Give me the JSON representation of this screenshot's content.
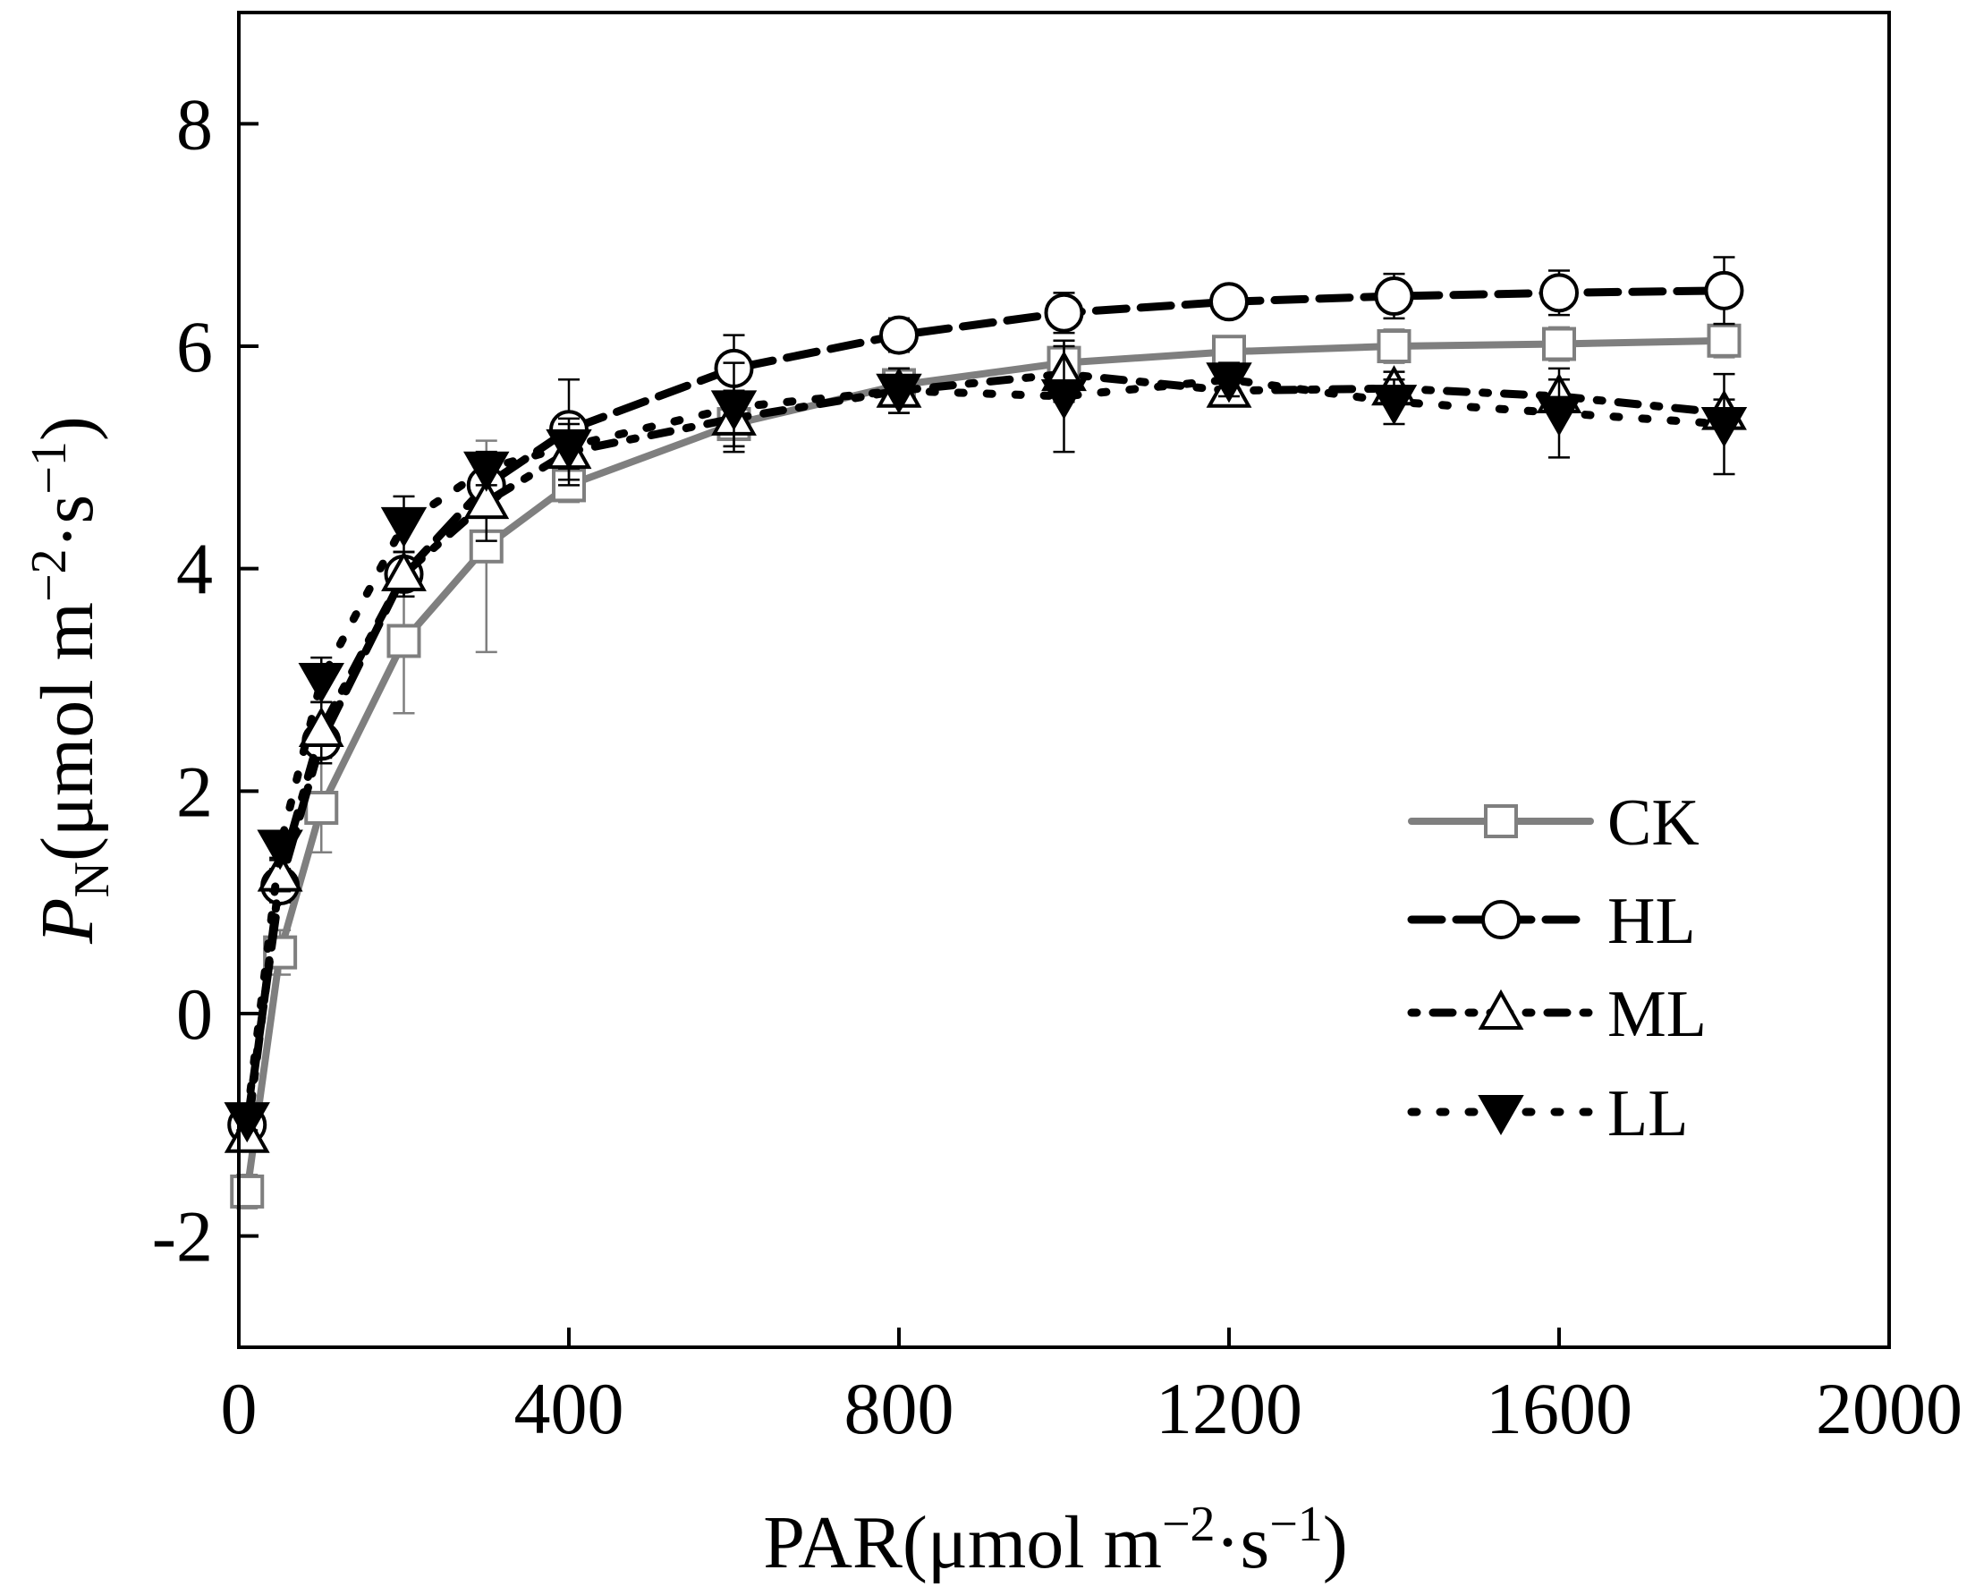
{
  "chart_data": {
    "type": "line",
    "xlabel": "PAR(μmol m⁻²·s⁻¹)",
    "ylabel": "PN(μmol m⁻²·s⁻¹)",
    "xlabel_parts": {
      "main": "PAR(μmol m",
      "sup1": "−2",
      "mid": "·s",
      "sup2": "−1",
      "end": ")"
    },
    "ylabel_parts": {
      "italic": "P",
      "sub": "N",
      "main": "(μmol m",
      "sup1": "−2",
      "mid": "·s",
      "sup2": "−1",
      "end": ")"
    },
    "xlim": [
      0,
      2000
    ],
    "ylim": [
      -3,
      9
    ],
    "xticks": [
      0,
      400,
      800,
      1200,
      1600,
      2000
    ],
    "xtick_labels": [
      "0",
      "400",
      "800",
      "1200",
      "1600",
      "2000"
    ],
    "yticks": [
      -2,
      0,
      2,
      4,
      6,
      8
    ],
    "ytick_labels": [
      "-2",
      "0",
      "2",
      "4",
      "6",
      "8"
    ],
    "legend_position": "right-center",
    "x": [
      10,
      50,
      100,
      200,
      300,
      400,
      600,
      800,
      1000,
      1200,
      1400,
      1600,
      1800
    ],
    "series": [
      {
        "name": "CK",
        "marker": "square-open",
        "line": "solid",
        "color": "#7f7f7f",
        "values": [
          -1.6,
          0.55,
          1.85,
          3.35,
          4.2,
          4.75,
          5.3,
          5.65,
          5.85,
          5.95,
          6.0,
          6.02,
          6.05
        ],
        "errors": [
          0.15,
          0.2,
          0.4,
          0.65,
          0.95,
          0.15,
          0.2,
          0.15,
          0.2,
          0.12,
          0.15,
          0.15,
          0.15
        ]
      },
      {
        "name": "HL",
        "marker": "circle-open",
        "line": "dashed",
        "color": "#000000",
        "values": [
          -1.0,
          1.15,
          2.45,
          3.95,
          4.75,
          5.25,
          5.8,
          6.1,
          6.3,
          6.4,
          6.45,
          6.48,
          6.5
        ],
        "errors": [
          0.12,
          0.15,
          0.2,
          0.2,
          0.2,
          0.45,
          0.3,
          0.15,
          0.18,
          0.1,
          0.2,
          0.2,
          0.3
        ]
      },
      {
        "name": "ML",
        "marker": "triangle-up-open",
        "line": "dot-dash",
        "color": "#000000",
        "values": [
          -1.1,
          1.25,
          2.55,
          3.95,
          4.6,
          5.05,
          5.35,
          5.6,
          5.75,
          5.6,
          5.62,
          5.55,
          5.4
        ],
        "errors": [
          0.12,
          0.15,
          0.25,
          0.2,
          0.35,
          0.3,
          0.25,
          0.2,
          0.25,
          0.12,
          0.15,
          0.15,
          0.12
        ]
      },
      {
        "name": "LL",
        "marker": "triangle-down-filled",
        "line": "dotted",
        "color": "#000000",
        "values": [
          -0.95,
          1.5,
          3.0,
          4.4,
          4.9,
          5.1,
          5.45,
          5.6,
          5.55,
          5.7,
          5.5,
          5.4,
          5.3
        ],
        "errors": [
          0.1,
          0.12,
          0.2,
          0.25,
          0.15,
          0.2,
          0.4,
          0.2,
          0.5,
          0.15,
          0.2,
          0.4,
          0.45
        ]
      }
    ]
  }
}
